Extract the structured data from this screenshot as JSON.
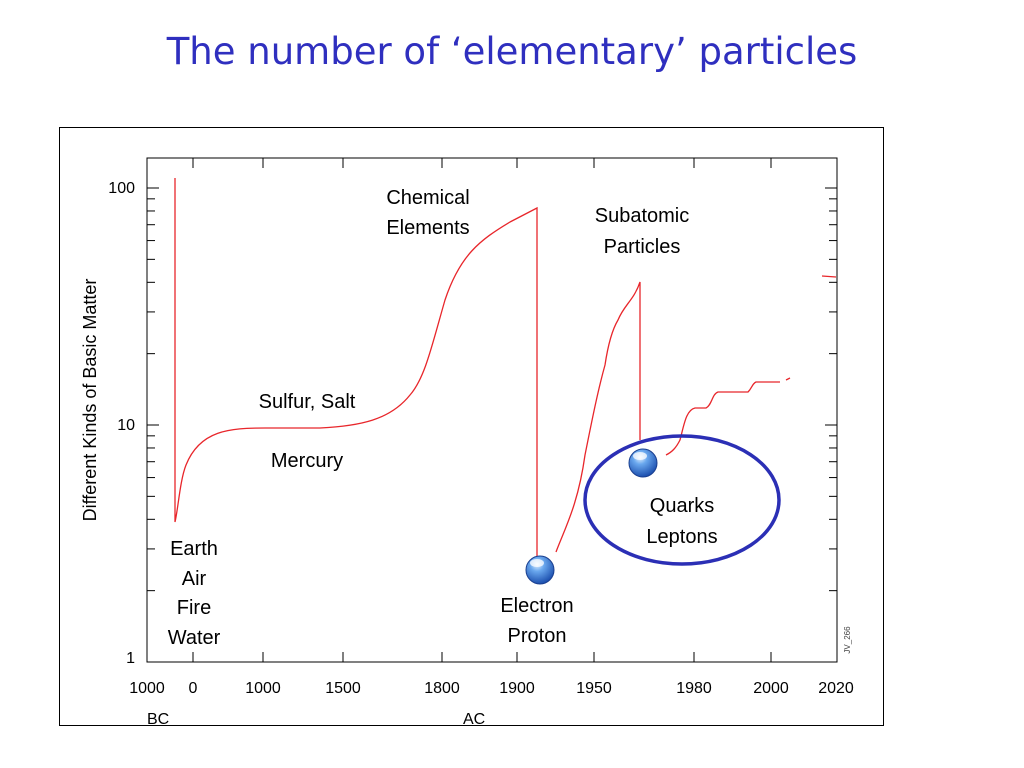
{
  "slide": {
    "title": "The number of ‘elementary’ particles"
  },
  "chart_data": {
    "type": "line",
    "ylabel": "Different Kinds of Basic Matter",
    "yscale": "log",
    "ylim": [
      1,
      140
    ],
    "y_ticks": [
      1,
      10,
      100
    ],
    "x_tick_labels": [
      "1000",
      "0",
      "1000",
      "1500",
      "1800",
      "1900",
      "1950",
      "1980",
      "2000",
      "2020"
    ],
    "x_era_labels": [
      "BC",
      "AC"
    ],
    "series": [
      {
        "points": [
          {
            "x": "0",
            "y": 110
          },
          {
            "x": "0",
            "y": 3.7
          },
          {
            "x": "1000",
            "y": 9.5
          },
          {
            "x": "1500",
            "y": 9.6
          },
          {
            "x": "1800",
            "y": 45
          },
          {
            "x": "1900",
            "y": 80
          },
          {
            "x": "1900",
            "y": 2.5
          },
          {
            "x": "1950",
            "y": 20
          },
          {
            "x": "1960",
            "y": 40
          },
          {
            "x": "1960",
            "y": 8
          },
          {
            "x": "1980",
            "y": 13
          },
          {
            "x": "2000",
            "y": 15
          },
          {
            "x": "2020",
            "y": 42
          }
        ]
      }
    ],
    "annotations": [
      {
        "id": "elements4",
        "text": [
          "Earth",
          "Air",
          "Fire",
          "Water"
        ]
      },
      {
        "id": "alchemy",
        "text": [
          "Sulfur, Salt"
        ]
      },
      {
        "id": "mercury",
        "text": [
          "Mercury"
        ]
      },
      {
        "id": "chemical",
        "text": [
          "Chemical",
          "Elements"
        ]
      },
      {
        "id": "electron",
        "text": [
          "Electron",
          "Proton"
        ]
      },
      {
        "id": "subatomic",
        "text": [
          "Subatomic",
          "Particles"
        ]
      },
      {
        "id": "quarks",
        "text": [
          "Quarks",
          "Leptons"
        ]
      }
    ],
    "markers": [
      "Electron/Proton",
      "Quarks/Leptons"
    ],
    "watermark": "JV_266",
    "line_color": "#e8262b",
    "highlight_color": "#2b2fb5"
  }
}
